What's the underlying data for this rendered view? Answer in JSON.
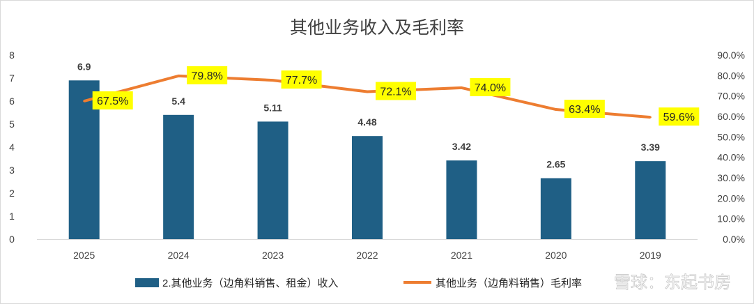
{
  "chart_data": {
    "type": "bar+line",
    "title": "其他业务收入及毛利率",
    "categories": [
      "2025",
      "2024",
      "2023",
      "2022",
      "2021",
      "2020",
      "2019"
    ],
    "series": [
      {
        "name": "2.其他业务（边角料销售、租金）收入",
        "type": "bar",
        "axis": "left",
        "values": [
          6.9,
          5.4,
          5.11,
          4.48,
          3.42,
          2.65,
          3.39
        ],
        "labels": [
          "6.9",
          "5.4",
          "5.11",
          "4.48",
          "3.42",
          "2.65",
          "3.39"
        ],
        "color": "#1f5f85"
      },
      {
        "name": "其他业务（边角料销售）毛利率",
        "type": "line",
        "axis": "right",
        "values": [
          67.5,
          79.8,
          77.7,
          72.1,
          74.0,
          63.4,
          59.6
        ],
        "labels": [
          "67.5%",
          "79.8%",
          "77.7%",
          "72.1%",
          "74.0%",
          "63.4%",
          "59.6%"
        ],
        "color": "#ed7d31",
        "label_bg": "#ffff00"
      }
    ],
    "y_left": {
      "min": 0,
      "max": 8,
      "ticks": [
        "0",
        "1",
        "2",
        "3",
        "4",
        "5",
        "6",
        "7",
        "8"
      ]
    },
    "y_right": {
      "min": 0,
      "max": 90,
      "ticks": [
        "0.0%",
        "10.0%",
        "20.0%",
        "30.0%",
        "40.0%",
        "50.0%",
        "60.0%",
        "70.0%",
        "80.0%",
        "90.0%"
      ]
    },
    "grid": false,
    "legend_position": "bottom"
  },
  "watermark": "雪球：东起书房"
}
